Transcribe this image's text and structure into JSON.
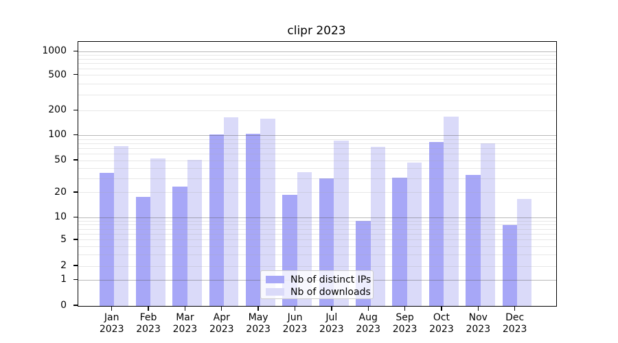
{
  "title": "clipr 2023",
  "chart_data": {
    "type": "bar",
    "title": "clipr 2023",
    "categories": [
      "Jan 2023",
      "Feb 2023",
      "Mar 2023",
      "Apr 2023",
      "May 2023",
      "Jun 2023",
      "Jul 2023",
      "Aug 2023",
      "Sep 2023",
      "Oct 2023",
      "Nov 2023",
      "Dec 2023"
    ],
    "month_labels": [
      "Jan",
      "Feb",
      "Mar",
      "Apr",
      "May",
      "Jun",
      "Jul",
      "Aug",
      "Sep",
      "Oct",
      "Nov",
      "Dec"
    ],
    "year_label": "2023",
    "series": [
      {
        "name": "Nb of distinct IPs",
        "color": "#a7a7f7",
        "values": [
          35,
          18,
          24,
          102,
          104,
          19,
          30,
          9,
          31,
          84,
          33,
          8
        ]
      },
      {
        "name": "Nb of downloads",
        "color": "#dadaf9",
        "values": [
          75,
          53,
          51,
          166,
          160,
          36,
          87,
          73,
          47,
          170,
          80,
          17
        ]
      }
    ],
    "yscale": "symlog",
    "ylim": [
      0,
      1000
    ],
    "y_tick_values": [
      0,
      1,
      2,
      5,
      10,
      20,
      50,
      100,
      200,
      500,
      1000
    ],
    "y_tick_labels": [
      "0",
      "1",
      "2",
      "5",
      "10",
      "20",
      "50",
      "100",
      "200",
      "500",
      "1000"
    ],
    "grid": "both",
    "grid_major_values": [
      1,
      10,
      100,
      1000
    ],
    "grid_minor_values": [
      2,
      3,
      4,
      5,
      6,
      7,
      8,
      9,
      20,
      30,
      40,
      50,
      60,
      70,
      80,
      90,
      200,
      300,
      400,
      500,
      600,
      700,
      800,
      900
    ],
    "legend_position": "lower center",
    "xlabel": "",
    "ylabel": ""
  }
}
